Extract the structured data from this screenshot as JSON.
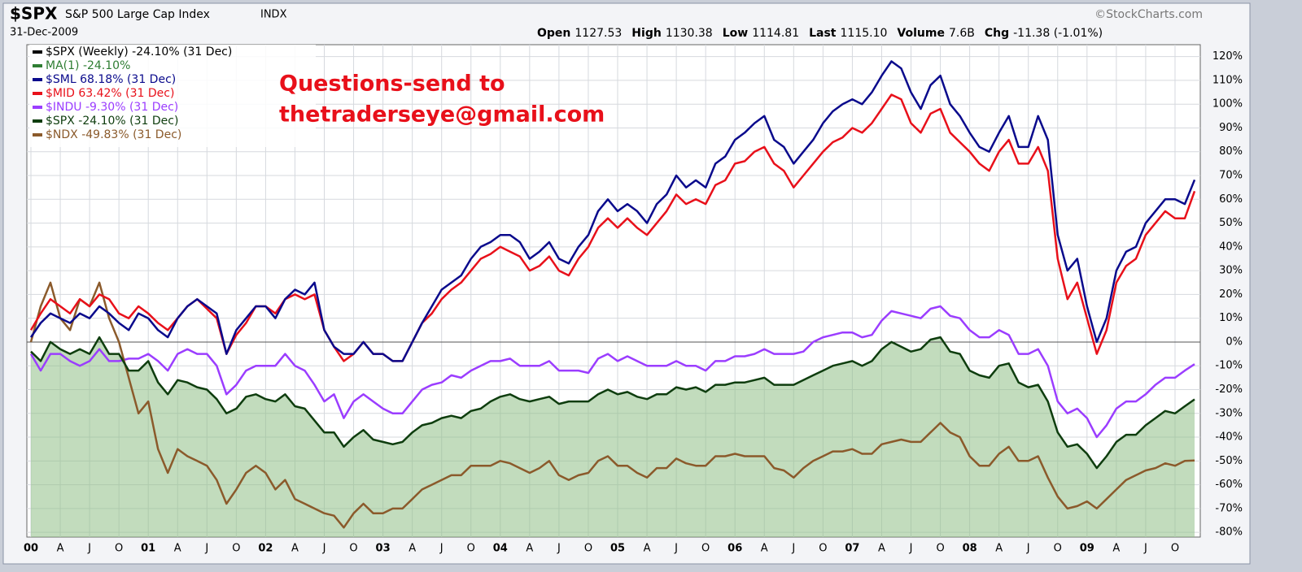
{
  "chart_data": {
    "type": "line",
    "symbol": "$SPX",
    "title": "S&P 500 Large Cap Index",
    "exchange": "INDX",
    "date": "31-Dec-2009",
    "source": "©StockCharts.com",
    "quote": [
      {
        "label": "Open",
        "value": "1127.53"
      },
      {
        "label": "High",
        "value": "1130.38"
      },
      {
        "label": "Low",
        "value": "1114.81"
      },
      {
        "label": "Last",
        "value": "1115.10"
      },
      {
        "label": "Volume",
        "value": "7.6B"
      },
      {
        "label": "Chg",
        "value": "-11.38 (-1.01%)"
      }
    ],
    "annotation": [
      "Questions-send to",
      "thetraderseye@gmail.com"
    ],
    "annotation_color": "#e8101a",
    "header_legend": [
      {
        "name": "$SPX (Weekly) -24.10% (31 Dec)",
        "color": "#000000"
      },
      {
        "name": "MA(1) -24.10%",
        "color": "#2e7d32"
      }
    ],
    "area_series": 3,
    "area_color": "#8fbf86",
    "grid": true,
    "categories": [
      "00",
      null,
      null,
      "A",
      null,
      null,
      "J",
      null,
      null,
      "O",
      null,
      null,
      "01",
      null,
      null,
      "A",
      null,
      null,
      "J",
      null,
      null,
      "O",
      null,
      null,
      "02",
      null,
      null,
      "A",
      null,
      null,
      "J",
      null,
      null,
      "O",
      null,
      null,
      "03",
      null,
      null,
      "A",
      null,
      null,
      "J",
      null,
      null,
      "O",
      null,
      null,
      "04",
      null,
      null,
      "A",
      null,
      null,
      "J",
      null,
      null,
      "O",
      null,
      null,
      "05",
      null,
      null,
      "A",
      null,
      null,
      "J",
      null,
      null,
      "O",
      null,
      null,
      "06",
      null,
      null,
      "A",
      null,
      null,
      "J",
      null,
      null,
      "O",
      null,
      null,
      "07",
      null,
      null,
      "A",
      null,
      null,
      "J",
      null,
      null,
      "O",
      null,
      null,
      "08",
      null,
      null,
      "A",
      null,
      null,
      "J",
      null,
      null,
      "O",
      null,
      null,
      "09",
      null,
      null,
      "A",
      null,
      null,
      "J",
      null,
      null,
      "O",
      null,
      null
    ],
    "ylim": [
      -82,
      125
    ],
    "yticks": [
      {
        "value": -80,
        "label": "-80%"
      },
      {
        "value": -70,
        "label": "-70%"
      },
      {
        "value": -60,
        "label": "-60%"
      },
      {
        "value": -50,
        "label": "-50%"
      },
      {
        "value": -40,
        "label": "-40%"
      },
      {
        "value": -30,
        "label": "-30%"
      },
      {
        "value": -20,
        "label": "-20%"
      },
      {
        "value": -10,
        "label": "-10%"
      },
      {
        "value": 0,
        "label": "0%"
      },
      {
        "value": 10,
        "label": "10%"
      },
      {
        "value": 20,
        "label": "20%"
      },
      {
        "value": 30,
        "label": "30%"
      },
      {
        "value": 40,
        "label": "40%"
      },
      {
        "value": 50,
        "label": "50%"
      },
      {
        "value": 60,
        "label": "60%"
      },
      {
        "value": 70,
        "label": "70%"
      },
      {
        "value": 80,
        "label": "80%"
      },
      {
        "value": 90,
        "label": "90%"
      },
      {
        "value": 100,
        "label": "100%"
      },
      {
        "value": 110,
        "label": "110%"
      },
      {
        "value": 120,
        "label": "120%"
      }
    ],
    "series": [
      {
        "name": "$SML 68.18% (31 Dec)",
        "color": "#0a0a8c",
        "values": [
          2,
          8,
          12,
          10,
          8,
          12,
          10,
          15,
          12,
          8,
          5,
          12,
          10,
          5,
          2,
          10,
          15,
          18,
          15,
          12,
          -5,
          5,
          10,
          15,
          15,
          10,
          18,
          22,
          20,
          25,
          5,
          -2,
          -5,
          -5,
          0,
          -5,
          -5,
          -8,
          -8,
          0,
          8,
          15,
          22,
          25,
          28,
          35,
          40,
          42,
          45,
          45,
          42,
          35,
          38,
          42,
          35,
          33,
          40,
          45,
          55,
          60,
          55,
          58,
          55,
          50,
          58,
          62,
          70,
          65,
          68,
          65,
          75,
          78,
          85,
          88,
          92,
          95,
          85,
          82,
          75,
          80,
          85,
          92,
          97,
          100,
          102,
          100,
          105,
          112,
          118,
          115,
          105,
          98,
          108,
          112,
          100,
          95,
          88,
          82,
          80,
          88,
          95,
          82,
          82,
          95,
          85,
          45,
          30,
          35,
          15,
          0,
          10,
          30,
          38,
          40,
          50,
          55,
          60,
          60,
          58,
          68.18
        ]
      },
      {
        "name": "$MID 63.42% (31 Dec)",
        "color": "#e8101a",
        "values": [
          5,
          12,
          18,
          15,
          12,
          18,
          15,
          20,
          18,
          12,
          10,
          15,
          12,
          8,
          5,
          10,
          15,
          18,
          14,
          10,
          -5,
          3,
          8,
          15,
          15,
          12,
          18,
          20,
          18,
          20,
          5,
          -2,
          -8,
          -5,
          0,
          -5,
          -5,
          -8,
          -8,
          0,
          8,
          12,
          18,
          22,
          25,
          30,
          35,
          37,
          40,
          38,
          36,
          30,
          32,
          36,
          30,
          28,
          35,
          40,
          48,
          52,
          48,
          52,
          48,
          45,
          50,
          55,
          62,
          58,
          60,
          58,
          66,
          68,
          75,
          76,
          80,
          82,
          75,
          72,
          65,
          70,
          75,
          80,
          84,
          86,
          90,
          88,
          92,
          98,
          104,
          102,
          92,
          88,
          96,
          98,
          88,
          84,
          80,
          75,
          72,
          80,
          85,
          75,
          75,
          82,
          72,
          35,
          18,
          25,
          10,
          -5,
          5,
          25,
          32,
          35,
          45,
          50,
          55,
          52,
          52,
          63.42
        ]
      },
      {
        "name": "$INDU -9.30% (31 Dec)",
        "color": "#9b3dff",
        "values": [
          -5,
          -12,
          -5,
          -5,
          -8,
          -10,
          -8,
          -3,
          -8,
          -8,
          -7,
          -7,
          -5,
          -8,
          -12,
          -5,
          -3,
          -5,
          -5,
          -10,
          -22,
          -18,
          -12,
          -10,
          -10,
          -10,
          -5,
          -10,
          -12,
          -18,
          -25,
          -22,
          -32,
          -25,
          -22,
          -25,
          -28,
          -30,
          -30,
          -25,
          -20,
          -18,
          -17,
          -14,
          -15,
          -12,
          -10,
          -8,
          -8,
          -7,
          -10,
          -10,
          -10,
          -8,
          -12,
          -12,
          -12,
          -13,
          -7,
          -5,
          -8,
          -6,
          -8,
          -10,
          -10,
          -10,
          -8,
          -10,
          -10,
          -12,
          -8,
          -8,
          -6,
          -6,
          -5,
          -3,
          -5,
          -5,
          -5,
          -4,
          0,
          2,
          3,
          4,
          4,
          2,
          3,
          9,
          13,
          12,
          11,
          10,
          14,
          15,
          11,
          10,
          5,
          2,
          2,
          5,
          3,
          -5,
          -5,
          -3,
          -10,
          -25,
          -30,
          -28,
          -32,
          -40,
          -35,
          -28,
          -25,
          -25,
          -22,
          -18,
          -15,
          -15,
          -12,
          -9.3
        ]
      },
      {
        "name": "$SPX -24.10% (31 Dec)",
        "color": "#0e3d0e",
        "values": [
          -4,
          -8,
          0,
          -3,
          -5,
          -3,
          -5,
          2,
          -5,
          -5,
          -12,
          -12,
          -8,
          -17,
          -22,
          -16,
          -17,
          -19,
          -20,
          -24,
          -30,
          -28,
          -23,
          -22,
          -24,
          -25,
          -22,
          -27,
          -28,
          -33,
          -38,
          -38,
          -44,
          -40,
          -37,
          -41,
          -42,
          -43,
          -42,
          -38,
          -35,
          -34,
          -32,
          -31,
          -32,
          -29,
          -28,
          -25,
          -23,
          -22,
          -24,
          -25,
          -24,
          -23,
          -26,
          -25,
          -25,
          -25,
          -22,
          -20,
          -22,
          -21,
          -23,
          -24,
          -22,
          -22,
          -19,
          -20,
          -19,
          -21,
          -18,
          -18,
          -17,
          -17,
          -16,
          -15,
          -18,
          -18,
          -18,
          -16,
          -14,
          -12,
          -10,
          -9,
          -8,
          -10,
          -8,
          -3,
          0,
          -2,
          -4,
          -3,
          1,
          2,
          -4,
          -5,
          -12,
          -14,
          -15,
          -10,
          -9,
          -17,
          -19,
          -18,
          -25,
          -38,
          -44,
          -43,
          -47,
          -53,
          -48,
          -42,
          -39,
          -39,
          -35,
          -32,
          -29,
          -30,
          -27,
          -24.1
        ]
      },
      {
        "name": "$NDX -49.83% (31 Dec)",
        "color": "#8b5a2b",
        "values": [
          0,
          15,
          25,
          10,
          5,
          18,
          15,
          25,
          10,
          0,
          -15,
          -30,
          -25,
          -45,
          -55,
          -45,
          -48,
          -50,
          -52,
          -58,
          -68,
          -62,
          -55,
          -52,
          -55,
          -62,
          -58,
          -66,
          -68,
          -70,
          -72,
          -73,
          -78,
          -72,
          -68,
          -72,
          -72,
          -70,
          -70,
          -66,
          -62,
          -60,
          -58,
          -56,
          -56,
          -52,
          -52,
          -52,
          -50,
          -51,
          -53,
          -55,
          -53,
          -50,
          -56,
          -58,
          -56,
          -55,
          -50,
          -48,
          -52,
          -52,
          -55,
          -57,
          -53,
          -53,
          -49,
          -51,
          -52,
          -52,
          -48,
          -48,
          -47,
          -48,
          -48,
          -48,
          -53,
          -54,
          -57,
          -53,
          -50,
          -48,
          -46,
          -46,
          -45,
          -47,
          -47,
          -43,
          -42,
          -41,
          -42,
          -42,
          -38,
          -34,
          -38,
          -40,
          -48,
          -52,
          -52,
          -47,
          -44,
          -50,
          -50,
          -48,
          -57,
          -65,
          -70,
          -69,
          -67,
          -70,
          -66,
          -62,
          -58,
          -56,
          -54,
          -53,
          -51,
          -52,
          -50,
          -49.83
        ]
      }
    ]
  }
}
